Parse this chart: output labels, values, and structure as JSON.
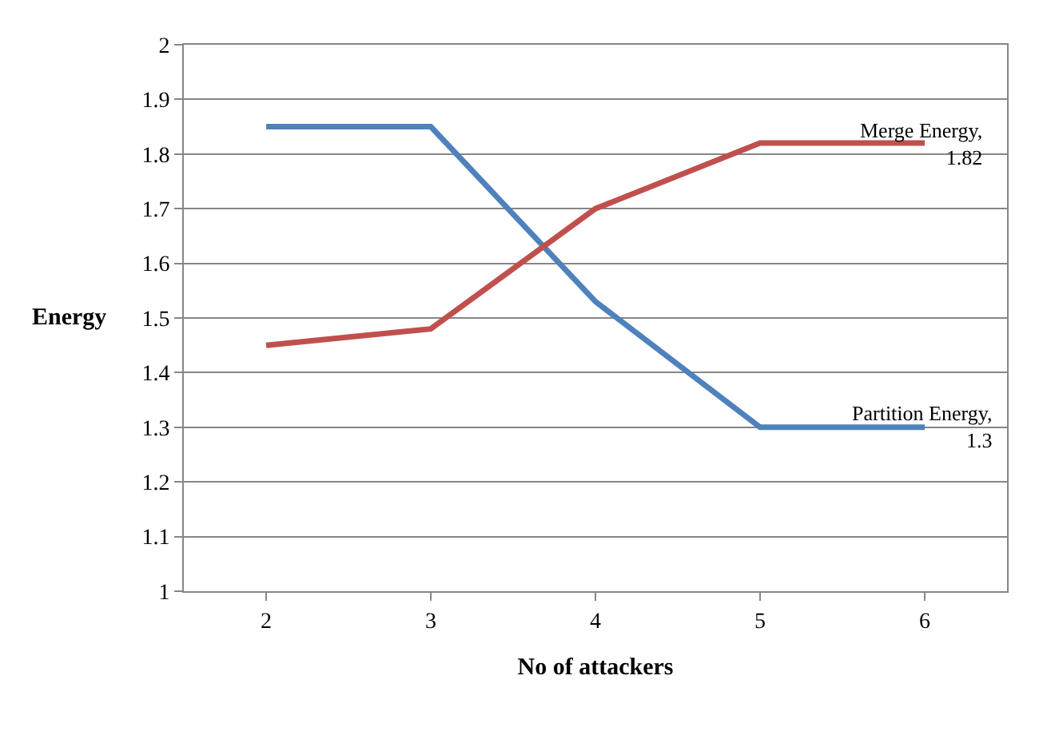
{
  "chart_data": {
    "type": "line",
    "xlabel": "No of attackers",
    "ylabel": "Energy",
    "categories": [
      "2",
      "3",
      "4",
      "5",
      "6"
    ],
    "series": [
      {
        "color": "#4f81bd",
        "values": [
          1.85,
          1.85,
          1.53,
          1.3,
          1.3
        ]
      },
      {
        "color": "#c0504d",
        "values": [
          1.45,
          1.48,
          1.7,
          1.82,
          1.82
        ]
      }
    ],
    "annotations": [
      {
        "text": "Merge Energy,\n1.82",
        "x": "6",
        "y": 1.82
      },
      {
        "text": "Partition Energy,\n1.3",
        "x": "6",
        "y": 1.3
      }
    ],
    "ylim": [
      1,
      2
    ],
    "yticks": [
      1,
      1.1,
      1.2,
      1.3,
      1.4,
      1.5,
      1.6,
      1.7,
      1.8,
      1.9,
      2
    ],
    "grid": "y",
    "marker": "none",
    "line_style": "solid"
  }
}
